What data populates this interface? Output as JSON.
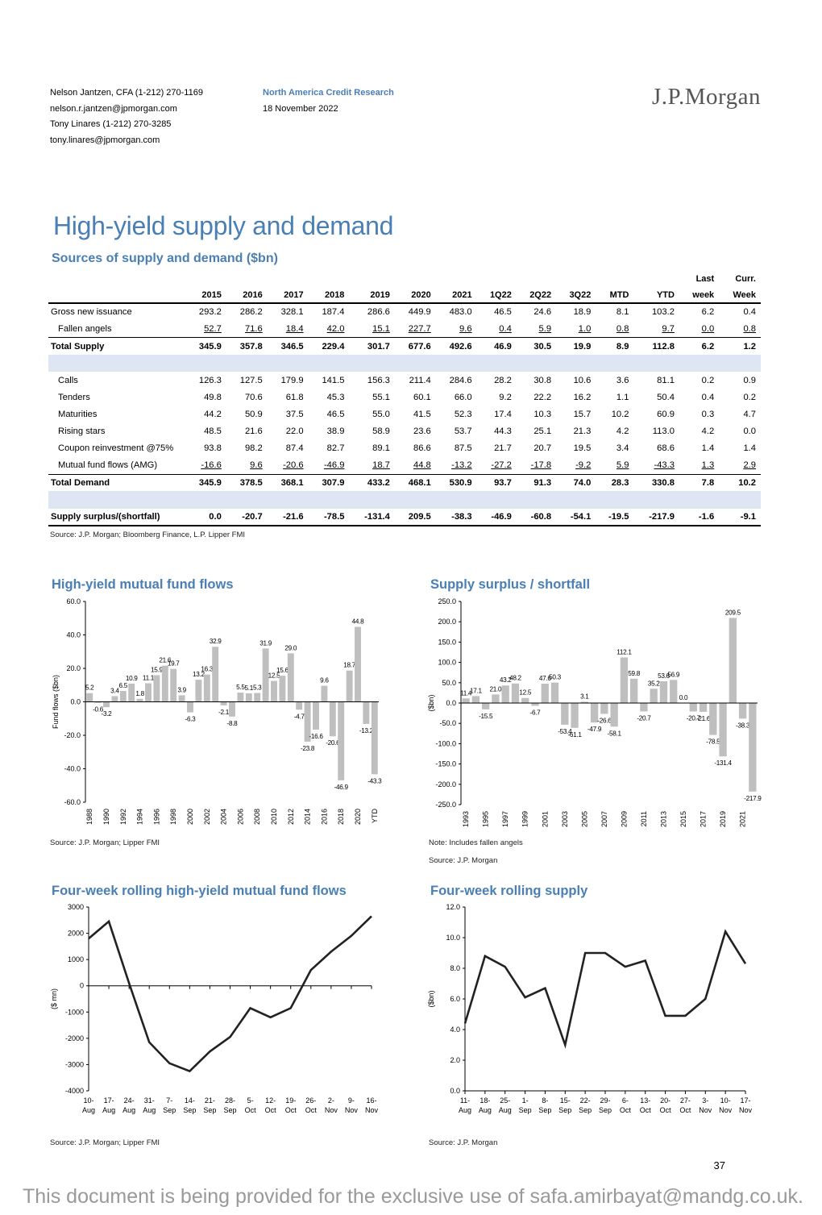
{
  "header": {
    "author_lines": [
      "Nelson Jantzen, CFA (1-212) 270-1169",
      "nelson.r.jantzen@jpmorgan.com",
      "Tony Linares (1-212) 270-3285",
      "tony.linares@jpmorgan.com"
    ],
    "research": "North America Credit Research",
    "date": "18 November 2022",
    "logo": "J.P.Morgan"
  },
  "page_title": "High-yield supply and demand",
  "table": {
    "title": "Sources of supply and demand ($bn)",
    "col_top": [
      "",
      "",
      "",
      "",
      "",
      "",
      "",
      "",
      "",
      "",
      "",
      "",
      "",
      "Last",
      "Curr."
    ],
    "columns": [
      "",
      "2015",
      "2016",
      "2017",
      "2018",
      "2019",
      "2020",
      "2021",
      "1Q22",
      "2Q22",
      "3Q22",
      "MTD",
      "YTD",
      "week",
      "Week"
    ],
    "rows": [
      {
        "label": "Gross new issuance",
        "values": [
          "293.2",
          "286.2",
          "328.1",
          "187.4",
          "286.6",
          "449.9",
          "483.0",
          "46.5",
          "24.6",
          "18.9",
          "8.1",
          "103.2",
          "6.2",
          "0.4"
        ]
      },
      {
        "label": "Fallen angels",
        "values": [
          "52.7",
          "71.6",
          "18.4",
          "42.0",
          "15.1",
          "227.7",
          "9.6",
          "0.4",
          "5.9",
          "1.0",
          "0.8",
          "9.7",
          "0.0",
          "0.8"
        ]
      },
      {
        "label": "Total Supply",
        "values": [
          "345.9",
          "357.8",
          "346.5",
          "229.4",
          "301.7",
          "677.6",
          "492.6",
          "46.9",
          "30.5",
          "19.9",
          "8.9",
          "112.8",
          "6.2",
          "1.2"
        ]
      },
      {
        "label": "Calls",
        "values": [
          "126.3",
          "127.5",
          "179.9",
          "141.5",
          "156.3",
          "211.4",
          "284.6",
          "28.2",
          "30.8",
          "10.6",
          "3.6",
          "81.1",
          "0.2",
          "0.9"
        ]
      },
      {
        "label": "Tenders",
        "values": [
          "49.8",
          "70.6",
          "61.8",
          "45.3",
          "55.1",
          "60.1",
          "66.0",
          "9.2",
          "22.2",
          "16.2",
          "1.1",
          "50.4",
          "0.4",
          "0.2"
        ]
      },
      {
        "label": "Maturities",
        "values": [
          "44.2",
          "50.9",
          "37.5",
          "46.5",
          "55.0",
          "41.5",
          "52.3",
          "17.4",
          "10.3",
          "15.7",
          "10.2",
          "60.9",
          "0.3",
          "4.7"
        ]
      },
      {
        "label": "Rising stars",
        "values": [
          "48.5",
          "21.6",
          "22.0",
          "38.9",
          "58.9",
          "23.6",
          "53.7",
          "44.3",
          "25.1",
          "21.3",
          "4.2",
          "113.0",
          "4.2",
          "0.0"
        ]
      },
      {
        "label": "Coupon reinvestment @75%",
        "values": [
          "93.8",
          "98.2",
          "87.4",
          "82.7",
          "89.1",
          "86.6",
          "87.5",
          "21.7",
          "20.7",
          "19.5",
          "3.4",
          "68.6",
          "1.4",
          "1.4"
        ]
      },
      {
        "label": "Mutual fund flows (AMG)",
        "values": [
          "-16.6",
          "9.6",
          "-20.6",
          "-46.9",
          "18.7",
          "44.8",
          "-13.2",
          "-27.2",
          "-17.8",
          "-9.2",
          "5.9",
          "-43.3",
          "1.3",
          "2.9"
        ]
      },
      {
        "label": "Total Demand",
        "values": [
          "345.9",
          "378.5",
          "368.1",
          "307.9",
          "433.2",
          "468.1",
          "530.9",
          "93.7",
          "91.3",
          "74.0",
          "28.3",
          "330.8",
          "7.8",
          "10.2"
        ]
      },
      {
        "label": "Supply surplus/(shortfall)",
        "values": [
          "0.0",
          "-20.7",
          "-21.6",
          "-78.5",
          "-131.4",
          "209.5",
          "-38.3",
          "-46.9",
          "-60.8",
          "-54.1",
          "-19.5",
          "-217.9",
          "-1.6",
          "-9.1"
        ]
      }
    ],
    "source": "Source: J.P. Morgan; Bloomberg Finance, L.P. Lipper FMI"
  },
  "chart_data": [
    {
      "type": "bar",
      "title": "High-yield mutual fund flows",
      "ylabel": "Fund flows ($bn)",
      "ylim": [
        -60,
        60
      ],
      "yticks": [
        "60.0",
        "40.0",
        "20.0",
        "0.0",
        "-20.0",
        "-40.0",
        "-60.0"
      ],
      "categories": [
        "1988",
        "1989",
        "1990",
        "1991",
        "1992",
        "1993",
        "1994",
        "1995",
        "1996",
        "1997",
        "1998",
        "1999",
        "2000",
        "2001",
        "2002",
        "2003",
        "2004",
        "2005",
        "2006",
        "2007",
        "2008",
        "2009",
        "2010",
        "2011",
        "2012",
        "2013",
        "2014",
        "2015",
        "2016",
        "2017",
        "2018",
        "2019",
        "2020",
        "2021",
        "YTD"
      ],
      "xtick_labels": [
        "1988",
        "",
        "1990",
        "",
        "1992",
        "",
        "1994",
        "",
        "1996",
        "",
        "1998",
        "",
        "2000",
        "",
        "2002",
        "",
        "2004",
        "",
        "2006",
        "",
        "2008",
        "",
        "2010",
        "",
        "2012",
        "",
        "2014",
        "",
        "2016",
        "",
        "2018",
        "",
        "2020",
        "",
        "YTD"
      ],
      "values": [
        5.2,
        -0.6,
        -3.2,
        3.4,
        6.5,
        10.9,
        1.8,
        11.1,
        15.9,
        21.6,
        19.7,
        3.9,
        -6.3,
        13.2,
        16.3,
        32.9,
        -2.1,
        -8.8,
        5.5,
        5.1,
        5.3,
        31.9,
        12.5,
        15.6,
        29.0,
        -4.7,
        -23.8,
        -16.6,
        9.6,
        -20.6,
        -46.9,
        18.7,
        44.8,
        -13.2,
        -43.3
      ],
      "labels": [
        "5.2",
        "-0.6",
        "-3.2",
        "3.4",
        "6.5",
        "10.9",
        "1.8",
        "11.1",
        "15.9",
        "21.6",
        "19.7",
        "3.9",
        "-6.3",
        "13.2",
        "16.3",
        "32.9",
        "-2.1",
        "-8.8",
        "5.5",
        "5.1",
        "5.3",
        "31.9",
        "12.5",
        "15.6",
        "29.0",
        "-4.7",
        "-23.8",
        "-16.6",
        "9.6",
        "-20.6",
        "-46.9",
        "18.7",
        "44.8",
        "-13.2",
        "-43.3"
      ],
      "source": "Source: J.P. Morgan; Lipper FMI"
    },
    {
      "type": "bar",
      "title": "Supply surplus / shortfall",
      "ylabel": "($bn)",
      "ylim": [
        -250,
        250
      ],
      "yticks": [
        "250.0",
        "200.0",
        "150.0",
        "100.0",
        "50.0",
        "0.0",
        "-50.0",
        "-100.0",
        "-150.0",
        "-200.0",
        "-250.0"
      ],
      "categories": [
        "1993",
        "1994",
        "1995",
        "1996",
        "1997",
        "1998",
        "1999",
        "2000",
        "2001",
        "2002",
        "2003",
        "2004",
        "2005",
        "2006",
        "2007",
        "2008",
        "2009",
        "2010",
        "2011",
        "2012",
        "2013",
        "2014",
        "2015",
        "2016",
        "2017",
        "2018",
        "2019",
        "2020",
        "2021",
        "YTD"
      ],
      "xtick_labels": [
        "1993",
        "",
        "1995",
        "",
        "1997",
        "",
        "1999",
        "",
        "2001",
        "",
        "2003",
        "",
        "2005",
        "",
        "2007",
        "",
        "2009",
        "",
        "2011",
        "",
        "2013",
        "",
        "2015",
        "",
        "2017",
        "",
        "2019",
        "",
        "2021",
        ""
      ],
      "values": [
        11.4,
        17.1,
        -15.5,
        21.0,
        43.2,
        48.2,
        12.5,
        -6.7,
        47.6,
        50.3,
        -53.4,
        -61.1,
        3.1,
        -47.9,
        -26.6,
        -58.1,
        112.1,
        59.8,
        -20.7,
        35.2,
        53.6,
        56.9,
        0.0,
        -20.7,
        -21.6,
        -78.5,
        -131.4,
        209.5,
        -38.3,
        -217.9
      ],
      "labels": [
        "11.4",
        "17.1",
        "-15.5",
        "21.0",
        "43.2",
        "48.2",
        "12.5",
        "-6.7",
        "47.6",
        "50.3",
        "-53.4",
        "-61.1",
        "3.1",
        "-47.9",
        "-26.6",
        "-58.1",
        "112.1",
        "59.8",
        "-20.7",
        "35.2",
        "53.6",
        "56.9",
        "0.0",
        "-20.7",
        "-21.6",
        "-78.5",
        "-131.4",
        "209.5",
        "-38.3",
        "-217.9"
      ],
      "note": "Note: Includes fallen angels",
      "source": "Source: J.P. Morgan"
    },
    {
      "type": "line",
      "title": "Four-week rolling high-yield mutual fund flows",
      "ylabel": "($ mn)",
      "ylim": [
        -4000,
        3000
      ],
      "yticks": [
        "3000",
        "2000",
        "1000",
        "0",
        "-1000",
        "-2000",
        "-3000",
        "-4000"
      ],
      "xtick_top": [
        "10-",
        "17-",
        "24-",
        "31-",
        "7-",
        "14-",
        "21-",
        "28-",
        "5-",
        "12-",
        "19-",
        "26-",
        "2-",
        "9-",
        "16-"
      ],
      "xtick_bottom": [
        "Aug",
        "Aug",
        "Aug",
        "Aug",
        "Sep",
        "Sep",
        "Sep",
        "Sep",
        "Oct",
        "Oct",
        "Oct",
        "Oct",
        "Nov",
        "Nov",
        "Nov"
      ],
      "x": [
        "10-Aug",
        "17-Aug",
        "24-Aug",
        "31-Aug",
        "7-Sep",
        "14-Sep",
        "21-Sep",
        "28-Sep",
        "5-Oct",
        "12-Oct",
        "19-Oct",
        "26-Oct",
        "2-Nov",
        "9-Nov",
        "16-Nov"
      ],
      "values": [
        1800,
        2450,
        100,
        -2150,
        -2950,
        -3250,
        -2500,
        -1950,
        -850,
        -1200,
        -850,
        600,
        1300,
        1900,
        2650
      ],
      "source": "Source: J.P. Morgan; Lipper FMI"
    },
    {
      "type": "line",
      "title": "Four-week rolling supply",
      "ylabel": "($bn)",
      "ylim": [
        0,
        12
      ],
      "yticks": [
        "12.0",
        "10.0",
        "8.0",
        "6.0",
        "4.0",
        "2.0",
        "0.0"
      ],
      "xtick_top": [
        "11-",
        "18-",
        "25-",
        "1-",
        "8-",
        "15-",
        "22-",
        "29-",
        "6-",
        "13-",
        "20-",
        "27-",
        "3-",
        "10-",
        "17-"
      ],
      "xtick_bottom": [
        "Aug",
        "Aug",
        "Aug",
        "Sep",
        "Sep",
        "Sep",
        "Sep",
        "Sep",
        "Oct",
        "Oct",
        "Oct",
        "Oct",
        "Nov",
        "Nov",
        "Nov"
      ],
      "x": [
        "11-Aug",
        "18-Aug",
        "25-Aug",
        "1-Sep",
        "8-Sep",
        "15-Sep",
        "22-Sep",
        "29-Sep",
        "6-Oct",
        "13-Oct",
        "20-Oct",
        "27-Oct",
        "3-Nov",
        "10-Nov",
        "17-Nov"
      ],
      "values": [
        4.4,
        8.8,
        8.1,
        6.1,
        6.7,
        3.0,
        9.0,
        9.0,
        8.1,
        8.5,
        4.9,
        4.9,
        6.0,
        10.4,
        8.3
      ],
      "source": "Source: J.P. Morgan"
    }
  ],
  "page_number": "37",
  "watermark": "This document is being provided for the exclusive use of safa.amirbayat@mandg.co.uk."
}
